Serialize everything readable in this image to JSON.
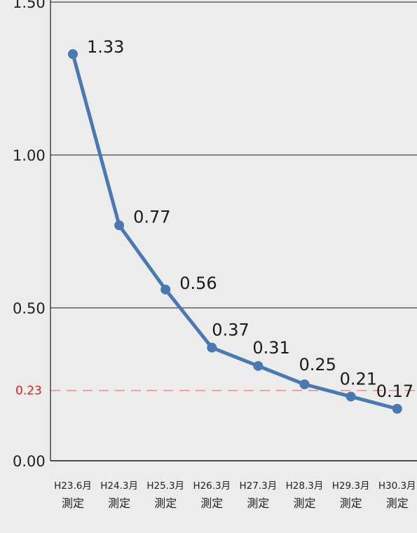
{
  "chart_data": {
    "type": "line",
    "title": "",
    "xlabel": "",
    "ylabel": "",
    "categories": [
      [
        "H23.6月",
        "測定"
      ],
      [
        "H24.3月",
        "測定"
      ],
      [
        "H25.3月",
        "測定"
      ],
      [
        "H26.3月",
        "測定"
      ],
      [
        "H27.3月",
        "測定"
      ],
      [
        "H28.3月",
        "測定"
      ],
      [
        "H29.3月",
        "測定"
      ],
      [
        "H30.3月",
        "測定"
      ]
    ],
    "series": [
      {
        "values": [
          1.33,
          0.77,
          0.56,
          0.37,
          0.31,
          0.25,
          0.21,
          0.17
        ],
        "labels": [
          "1.33",
          "0.77",
          "0.56",
          "0.37",
          "0.31",
          "0.25",
          "0.21",
          "0.17"
        ],
        "color": "#4a78b1"
      }
    ],
    "ylim": [
      0,
      1.5
    ],
    "y_ticks": [
      {
        "value": 0.0,
        "label": "0.00",
        "gridline": true
      },
      {
        "value": 0.5,
        "label": "0.50",
        "gridline": true
      },
      {
        "value": 1.0,
        "label": "1.00",
        "gridline": true
      },
      {
        "value": 1.5,
        "label": "1.50",
        "gridline": true
      }
    ],
    "reference_line": {
      "value": 0.23,
      "label": "0.23",
      "color": "#e88e8e",
      "label_color": "#d61f1f",
      "style": "dashed"
    },
    "grid": true,
    "legend": "none"
  }
}
